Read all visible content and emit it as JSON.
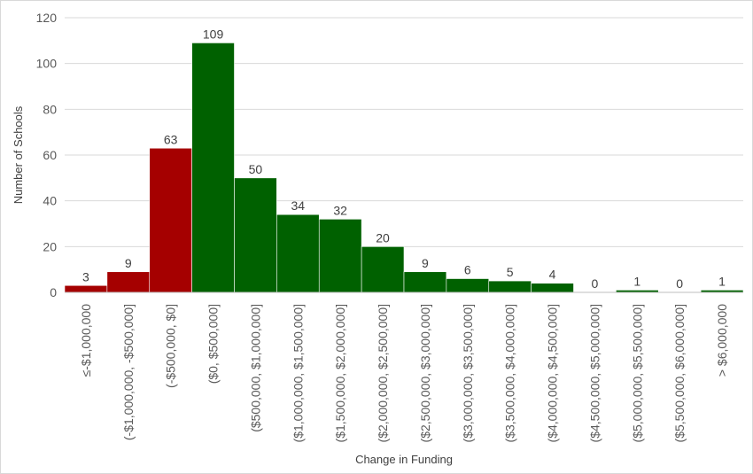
{
  "chart_data": {
    "type": "bar",
    "title": "",
    "xlabel": "Change in Funding",
    "ylabel": "Number of Schools",
    "ylim": [
      0,
      120
    ],
    "yticks": [
      0,
      20,
      40,
      60,
      80,
      100,
      120
    ],
    "grid": true,
    "legend": "none",
    "categories": [
      "≤-$1,000,000",
      "(-$1,000,000, -$500,000]",
      "(-$500,000, $0]",
      "($0, $500,000]",
      "($500,000, $1,000,000]",
      "($1,000,000, $1,500,000]",
      "($1,500,000, $2,000,000]",
      "($2,000,000, $2,500,000]",
      "($2,500,000, $3,000,000]",
      "($3,000,000, $3,500,000]",
      "($3,500,000, $4,000,000]",
      "($4,000,000, $4,500,000]",
      "($4,500,000, $5,000,000]",
      "($5,000,000, $5,500,000]",
      "($5,500,000, $6,000,000]",
      "> $6,000,000"
    ],
    "values": [
      3,
      9,
      63,
      109,
      50,
      34,
      32,
      20,
      9,
      6,
      5,
      4,
      0,
      1,
      0,
      1
    ],
    "bar_colors": [
      "#a50000",
      "#a50000",
      "#a50000",
      "#006100",
      "#006100",
      "#006100",
      "#006100",
      "#006100",
      "#006100",
      "#006100",
      "#006100",
      "#006100",
      "#006100",
      "#006100",
      "#006100",
      "#006100"
    ],
    "colors": {
      "negative": "#a50000",
      "positive": "#006100",
      "gridline": "#d9d9d9",
      "text": "#595959"
    }
  }
}
